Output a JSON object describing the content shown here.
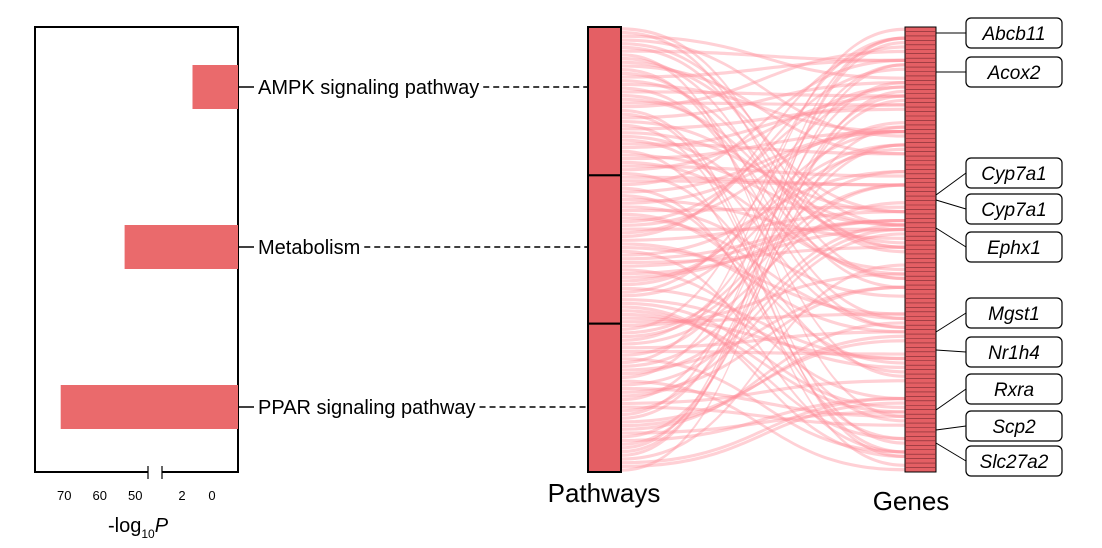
{
  "chart_data": {
    "type": "bar",
    "orientation": "horizontal",
    "categories": [
      "AMPK signaling pathway",
      "Metabolism",
      "PPAR signaling pathway"
    ],
    "values": [
      1.3,
      53,
      71
    ],
    "xlabel": "-log",
    "xlabel_sub": "10",
    "xlabel_var": "P",
    "axis_reversed": true,
    "axis_break": true,
    "x_ticks_left": [
      {
        "label": "70",
        "value": 70
      },
      {
        "label": "60",
        "value": 60
      },
      {
        "label": "50",
        "value": 50
      }
    ],
    "x_ticks_right": [
      {
        "label": "2",
        "value": 2
      },
      {
        "label": "0",
        "value": 0
      }
    ],
    "bar_color": "#ea6a6c",
    "sankey": {
      "left_title": "Pathways",
      "right_title": "Genes",
      "node_color": "#e45f64",
      "flow_color": "#ff8f9b",
      "genes": [
        "Abcb11",
        "Acox2",
        "Cyp7a1",
        "Cyp7a1",
        "Ephx1",
        "Mgst1",
        "Nr1h4",
        "Rxra",
        "Scp2",
        "Slc27a2"
      ]
    }
  }
}
